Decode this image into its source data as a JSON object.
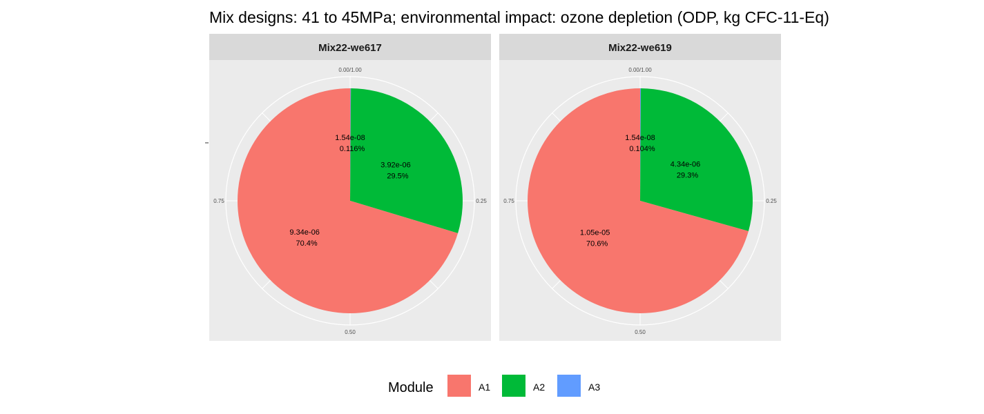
{
  "chart_data": {
    "type": "pie",
    "title": "Mix designs: 41 to 45MPa; environmental impact: ozone depletion (ODP, kg CFC-11-Eq)",
    "theta_ticks": [
      "0.00/1.00",
      "0.25",
      "0.50",
      "0.75"
    ],
    "legend": {
      "title": "Module",
      "position": "bottom",
      "entries": [
        {
          "label": "A1",
          "color": "#F8766D"
        },
        {
          "label": "A2",
          "color": "#00BA38"
        },
        {
          "label": "A3",
          "color": "#619CFF"
        }
      ]
    },
    "facets": [
      {
        "name": "Mix22-we617",
        "slices": [
          {
            "module": "A1",
            "value": "9.34e-06",
            "percent": "70.4%",
            "fraction": 0.70384
          },
          {
            "module": "A2",
            "value": "3.92e-06",
            "percent": "29.5%",
            "fraction": 0.2954
          },
          {
            "module": "A3",
            "value": "1.54e-08",
            "percent": "0.116%",
            "fraction": 0.00116
          }
        ]
      },
      {
        "name": "Mix22-we619",
        "slices": [
          {
            "module": "A1",
            "value": "1.05e-05",
            "percent": "70.6%",
            "fraction": 0.70644
          },
          {
            "module": "A2",
            "value": "4.34e-06",
            "percent": "29.3%",
            "fraction": 0.29252
          },
          {
            "module": "A3",
            "value": "1.54e-08",
            "percent": "0.104%",
            "fraction": 0.00104
          }
        ]
      }
    ],
    "colors": {
      "panel_background": "#EBEBEB",
      "strip_background": "#D9D9D9",
      "grid": "#FFFFFF"
    }
  }
}
